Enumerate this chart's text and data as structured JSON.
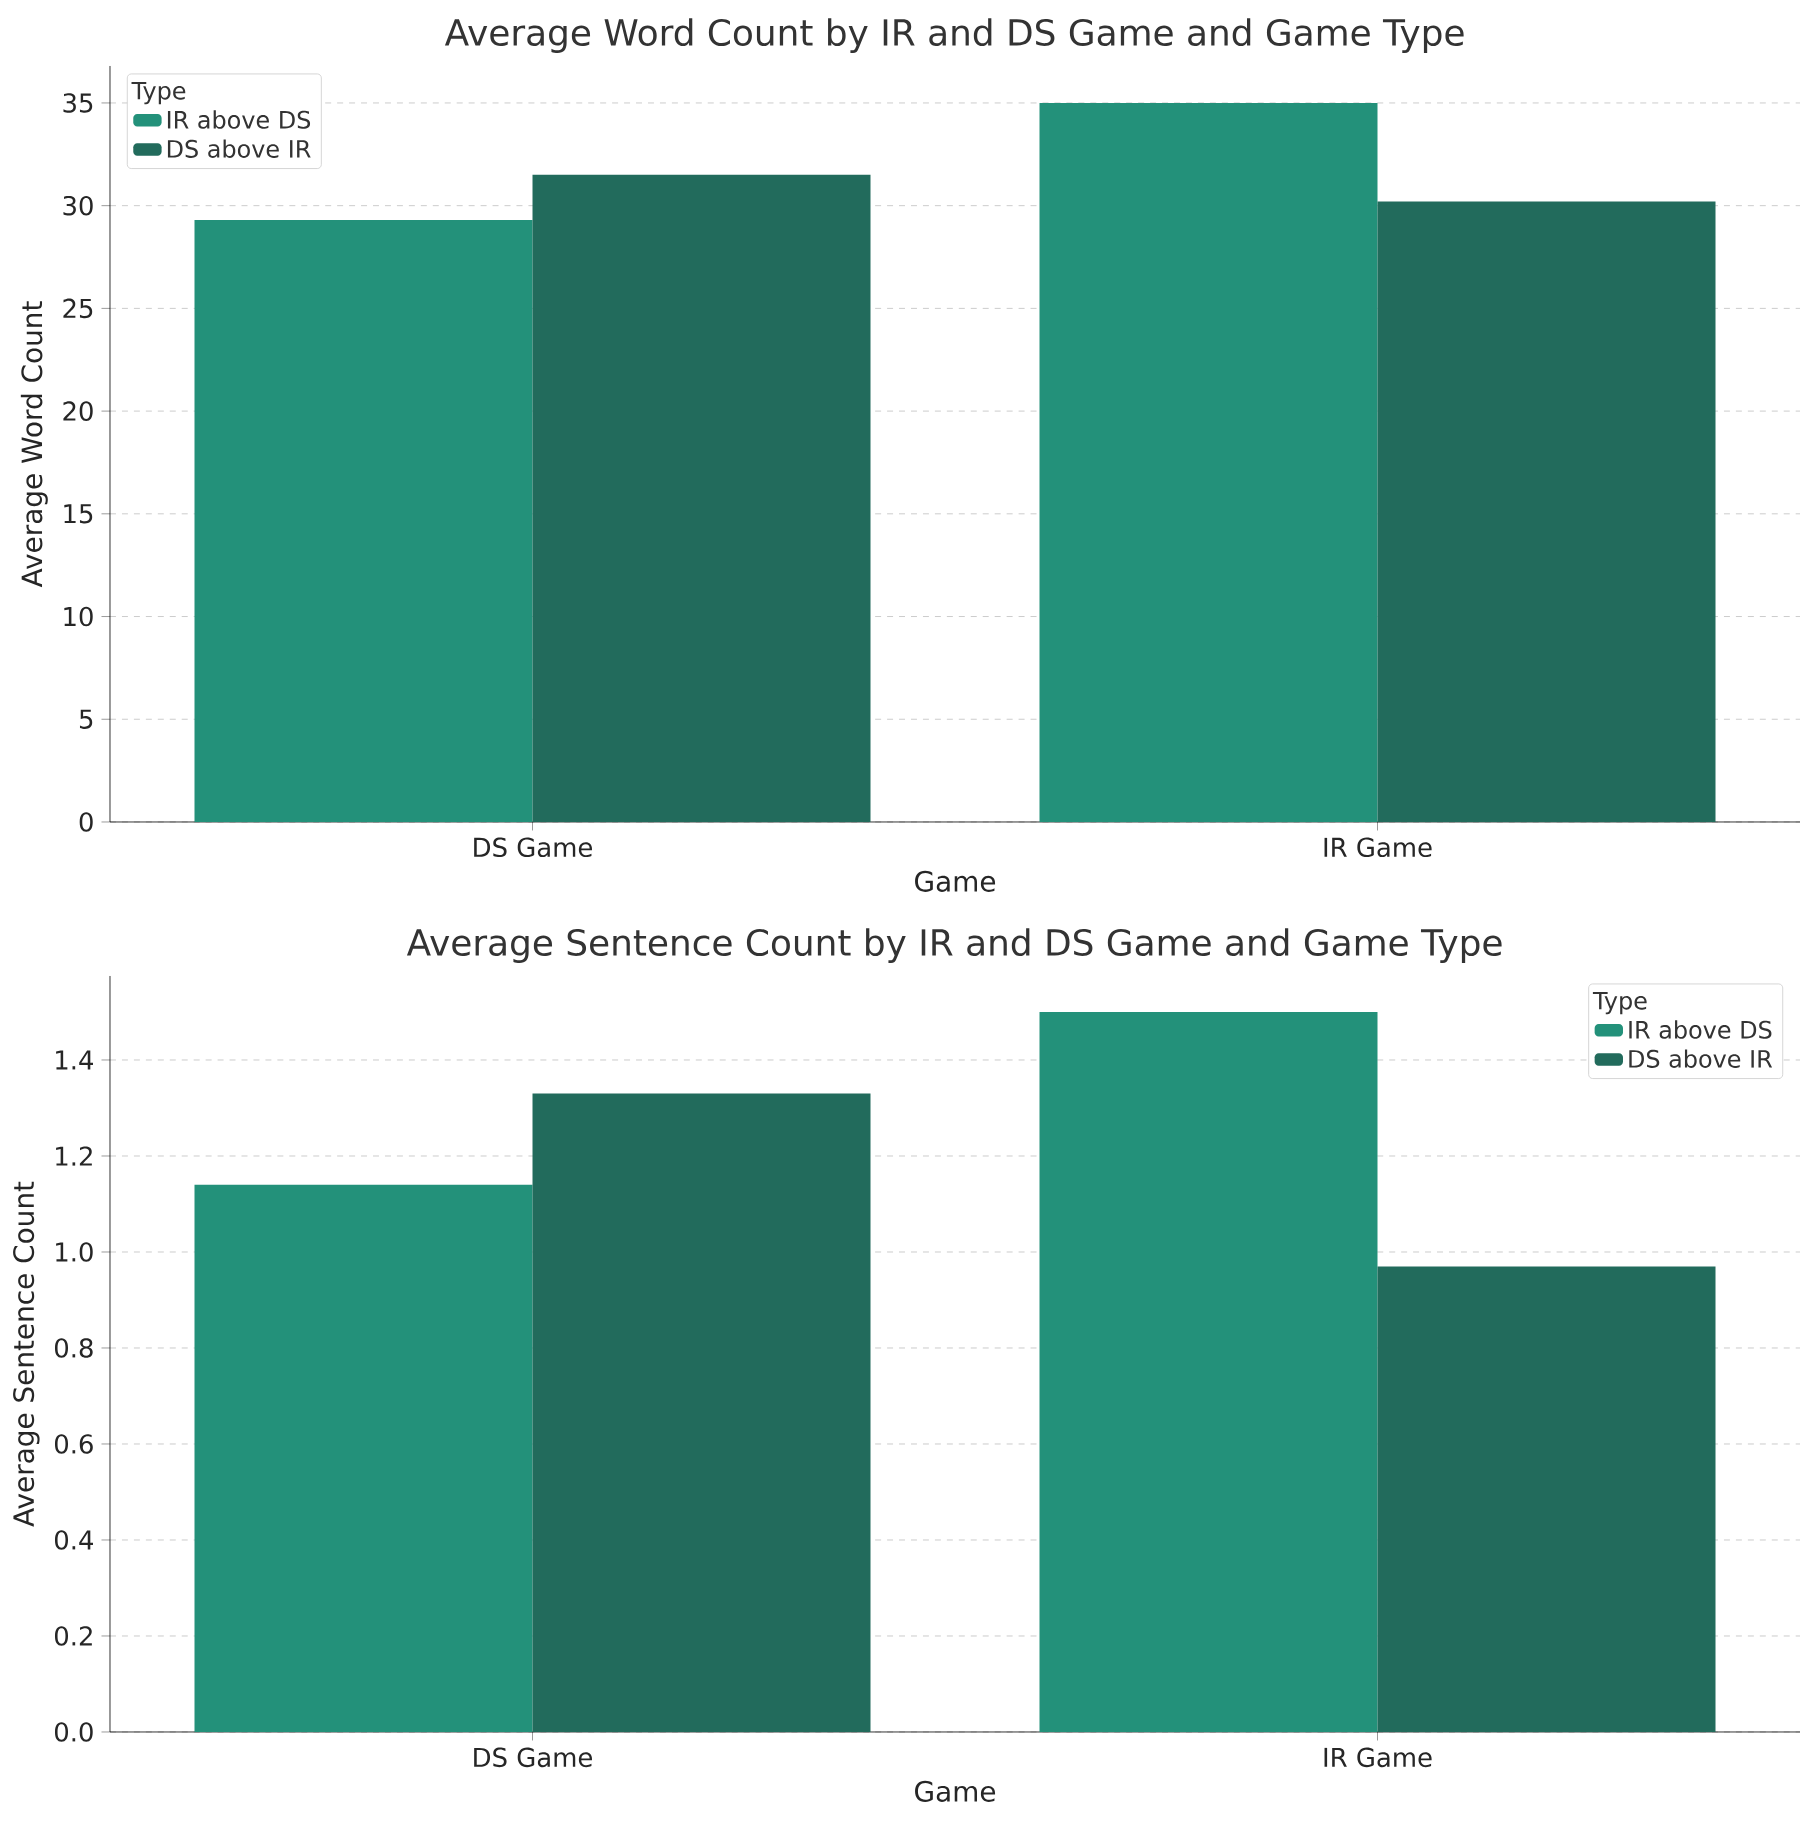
{
  "chart_data": [
    {
      "type": "bar",
      "title": "Average Word Count by IR and DS Game and Game Type",
      "xlabel": "Game",
      "ylabel": "Average Word Count",
      "categories": [
        "DS Game",
        "IR Game"
      ],
      "series": [
        {
          "name": "IR above DS",
          "color": "#23917a",
          "values": [
            29.3,
            35.0
          ]
        },
        {
          "name": "DS above IR",
          "color": "#226b5c",
          "values": [
            31.5,
            30.2
          ]
        }
      ],
      "ylim": [
        0,
        36.8
      ],
      "yticks": [
        0,
        5,
        10,
        15,
        20,
        25,
        30,
        35
      ],
      "grid": "y",
      "legend": "top left",
      "legend_title": "Type"
    },
    {
      "type": "bar",
      "title": "Average Sentence Count by IR and DS Game and Game Type",
      "xlabel": "Game",
      "ylabel": "Average Sentence Count",
      "categories": [
        "DS Game",
        "IR Game"
      ],
      "series": [
        {
          "name": "IR above DS",
          "color": "#23917a",
          "values": [
            1.14,
            1.5
          ]
        },
        {
          "name": "DS above IR",
          "color": "#226b5c",
          "values": [
            1.33,
            0.97
          ]
        }
      ],
      "ylim": [
        0,
        1.575
      ],
      "yticks": [
        {
          "value": 0,
          "label": "0.0"
        },
        {
          "value": 0.2,
          "label": "0.2"
        },
        {
          "value": 0.4,
          "label": "0.4"
        },
        {
          "value": 0.6,
          "label": "0.6"
        },
        {
          "value": 0.8,
          "label": "0.8"
        },
        {
          "value": 1.0,
          "label": "1.0"
        },
        {
          "value": 1.2,
          "label": "1.2"
        },
        {
          "value": 1.4,
          "label": "1.4"
        }
      ],
      "grid": "y",
      "legend": "top right",
      "legend_title": "Type"
    }
  ]
}
